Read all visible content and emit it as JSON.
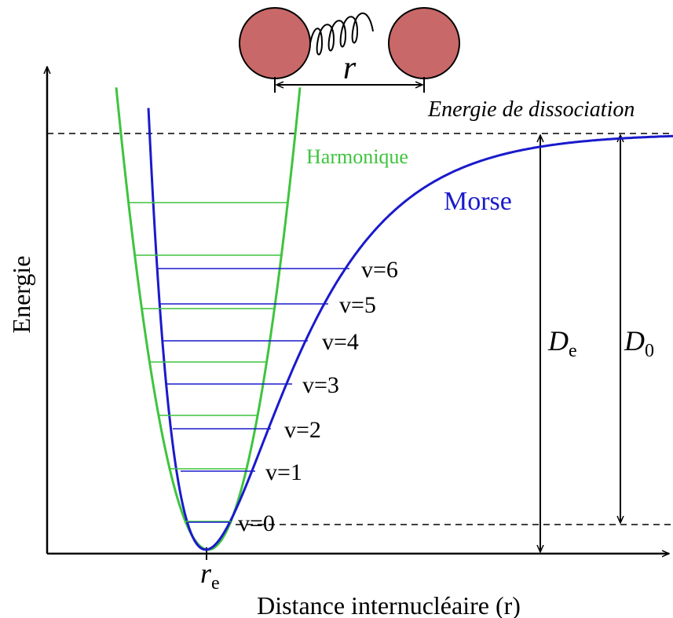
{
  "molecule": {
    "label": "r"
  },
  "dissociation_label": "Energie de dissociation",
  "harmonic_label": "Harmonique",
  "morse_label": "Morse",
  "levels": [
    "v=0",
    "v=1",
    "v=2",
    "v=3",
    "v=4",
    "v=5",
    "v=6"
  ],
  "De": {
    "main": "D",
    "sub": "e"
  },
  "D0": {
    "main": "D",
    "sub": "0"
  },
  "y_axis_label": "Energie",
  "re": {
    "main": "r",
    "sub": "e"
  },
  "x_axis_label": "Distance internucléaire (r)"
}
